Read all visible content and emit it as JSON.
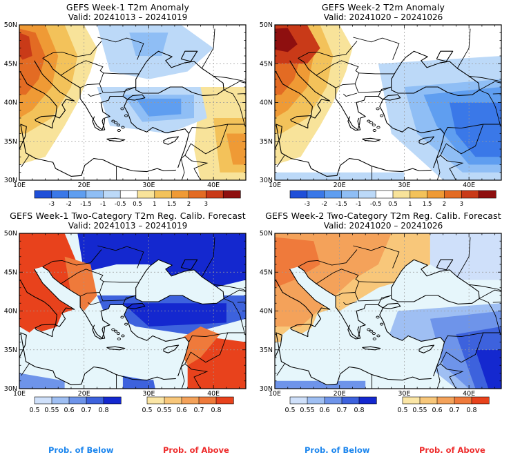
{
  "panels": [
    {
      "id": "p1",
      "title": "GEFS Week-1 T2m Anomaly",
      "valid": "Valid: 20241013 – 20241019",
      "kind": "anomaly",
      "week": 1
    },
    {
      "id": "p2",
      "title": "GEFS Week-2 T2m Anomaly",
      "valid": "Valid: 20241020 – 20241026",
      "kind": "anomaly",
      "week": 2
    },
    {
      "id": "p3",
      "title": "GEFS Week-1 Two-Category T2m Reg. Calib. Forecast",
      "valid": "Valid: 20241013 – 20241019",
      "kind": "prob",
      "week": 1
    },
    {
      "id": "p4",
      "title": "GEFS Week-2 Two-Category T2m Reg. Calib. Forecast",
      "valid": "Valid: 20241020 – 20241026",
      "kind": "prob",
      "week": 2
    }
  ],
  "map_axes": {
    "lat_labels": [
      "50N",
      "45N",
      "40N",
      "35N",
      "30N"
    ],
    "lon_labels": [
      "10E",
      "20E",
      "30E",
      "40E"
    ]
  },
  "anomaly_colorbar": {
    "labels": [
      "-3",
      "-2",
      "-1.5",
      "-1",
      "-0.5",
      "0.5",
      "1",
      "1.5",
      "2",
      "3"
    ],
    "colors": [
      "#1f4fd8",
      "#3a78e8",
      "#5f9ef0",
      "#8fbef5",
      "#bcd9f8",
      "#ffffff",
      "#f8e39a",
      "#f3c25a",
      "#ef9a35",
      "#e36b23",
      "#c93a18",
      "#8e0f0f"
    ]
  },
  "prob_colorbar_below": {
    "labels": [
      "0.5",
      "0.55",
      "0.6",
      "0.7",
      "0.8"
    ],
    "colors": [
      "#cfe0fa",
      "#9fbff3",
      "#6e94ea",
      "#3d62dd",
      "#1428cf"
    ]
  },
  "prob_colorbar_above": {
    "labels": [
      "0.5",
      "0.55",
      "0.6",
      "0.7",
      "0.8"
    ],
    "colors": [
      "#fbe6a6",
      "#f8c77a",
      "#f4a25a",
      "#ef7a3b",
      "#e8421c"
    ]
  },
  "footer": {
    "below_left": "Prob. of Below",
    "above_left": "Prob. of Above",
    "below_right": "Prob. of Below",
    "above_right": "Prob. of Above",
    "below_color": "#1c86ee",
    "above_color": "#ee2c2c"
  },
  "colors": {
    "land_background": "#e6f6fb",
    "coast": "#000000",
    "grid": "#9a9a9a"
  }
}
